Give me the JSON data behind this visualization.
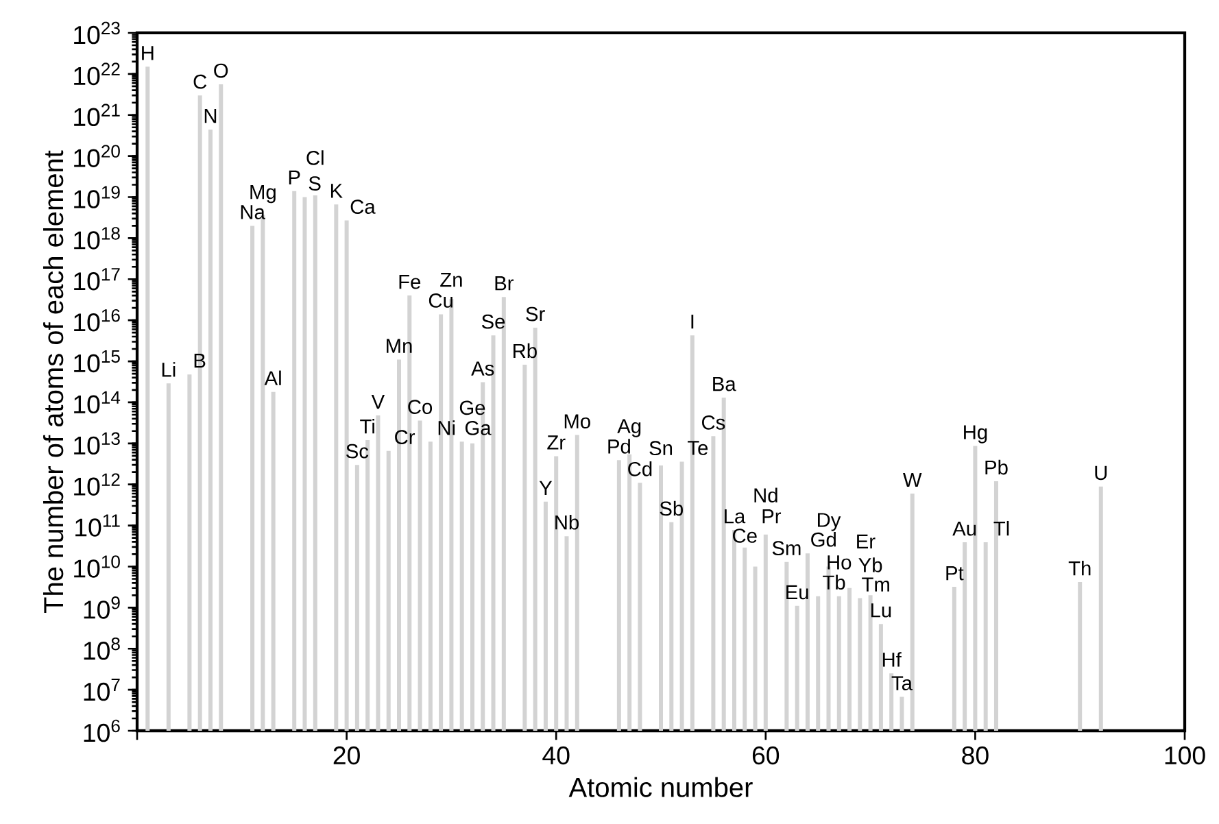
{
  "chart_data": {
    "type": "bar",
    "xlabel": "Atomic number",
    "ylabel": "The number of atoms of each element",
    "log": "y",
    "color": "#d3d3d3",
    "grid": false,
    "x": [
      1,
      3,
      5,
      6,
      7,
      8,
      11,
      12,
      13,
      15,
      16,
      17,
      19,
      20,
      21,
      22,
      23,
      24,
      25,
      26,
      27,
      28,
      29,
      30,
      31,
      32,
      33,
      34,
      35,
      37,
      38,
      39,
      40,
      41,
      42,
      46,
      47,
      48,
      50,
      51,
      52,
      53,
      55,
      56,
      57,
      58,
      59,
      60,
      62,
      63,
      64,
      65,
      66,
      67,
      68,
      69,
      70,
      71,
      72,
      73,
      74,
      78,
      79,
      80,
      81,
      82,
      90,
      92
    ],
    "values": [
      1.5e+22,
      290000000000000.0,
      480000000000000.0,
      3e+21,
      4.4e+20,
      5.6e+21,
      2e+18,
      3.7e+18,
      180000000000000.0,
      1.4e+19,
      1e+19,
      1.1e+19,
      6.6e+18,
      2.7e+18,
      3000000000000.0,
      12000000000000.0,
      48000000000000.0,
      6600000000000.0,
      1100000000000000.0,
      4e+16,
      36000000000000.0,
      11000000000000.0,
      1.4e+16,
      3.3e+16,
      11000000000000.0,
      10000000000000.0,
      310000000000000.0,
      4300000000000000.0,
      3.7e+16,
      830000000000000.0,
      6600000000000000.0,
      380000000000.0,
      4900000000000.0,
      55000000000.0,
      16000000000000.0,
      3900000000000.0,
      5400000000000.0,
      1100000000000.0,
      2900000000000.0,
      120000000000.0,
      3600000000000.0,
      4300000000000000.0,
      15000000000000.0,
      130000000000000.0,
      78000000000.0,
      29000000000.0,
      10000000000.0,
      60000000000.0,
      13000000000.0,
      1100000000.0,
      21000000000.0,
      1900000000.0,
      10000000000.0,
      1900000000.0,
      3000000000.0,
      1700000000.0,
      2000000000.0,
      400000000.0,
      25000000.0,
      6700000.0,
      600000000000.0,
      3200000000.0,
      39000000000.0,
      8700000000000.0,
      39000000000.0,
      1200000000000.0,
      4200000000.0,
      890000000000.0
    ],
    "annotations": [
      {
        "text": "H",
        "x": 1,
        "y": 1.5e+22
      },
      {
        "text": "Li",
        "x": 3,
        "y": 290000000000000.0
      },
      {
        "text": "B",
        "x": 5,
        "y": 480000000000000.0
      },
      {
        "text": "C",
        "x": 6,
        "y": 3e+21
      },
      {
        "text": "N",
        "x": 7,
        "y": 4.4e+20
      },
      {
        "text": "O",
        "x": 8,
        "y": 5.6e+21
      },
      {
        "text": "Na",
        "x": 11,
        "y": 2e+18
      },
      {
        "text": "Mg",
        "x": 12,
        "y": 3.7e+18
      },
      {
        "text": "Al",
        "x": 13,
        "y": 180000000000000.0
      },
      {
        "text": "P",
        "x": 15,
        "y": 1.4e+19
      },
      {
        "text": "S",
        "x": 16,
        "y": 1e+19
      },
      {
        "text": "Cl",
        "x": 17,
        "y": 1.1e+19
      },
      {
        "text": "K",
        "x": 19,
        "y": 6.6e+18
      },
      {
        "text": "Ca",
        "x": 20,
        "y": 2.7e+18
      },
      {
        "text": "Sc",
        "x": 21,
        "y": 3000000000000.0
      },
      {
        "text": "Ti",
        "x": 22,
        "y": 12000000000000.0
      },
      {
        "text": "V",
        "x": 23,
        "y": 48000000000000.0
      },
      {
        "text": "Cr",
        "x": 24,
        "y": 6600000000000.0
      },
      {
        "text": "Mn",
        "x": 25,
        "y": 1100000000000000.0
      },
      {
        "text": "Fe",
        "x": 26,
        "y": 4e+16
      },
      {
        "text": "Co",
        "x": 27,
        "y": 36000000000000.0
      },
      {
        "text": "Ni",
        "x": 28,
        "y": 11000000000000.0
      },
      {
        "text": "Cu",
        "x": 29,
        "y": 1.4e+16
      },
      {
        "text": "Zn",
        "x": 30,
        "y": 3.3e+16
      },
      {
        "text": "Ga",
        "x": 31,
        "y": 11000000000000.0
      },
      {
        "text": "Ge",
        "x": 32,
        "y": 10000000000000.0
      },
      {
        "text": "As",
        "x": 33,
        "y": 310000000000000.0
      },
      {
        "text": "Se",
        "x": 34,
        "y": 4300000000000000.0
      },
      {
        "text": "Br",
        "x": 35,
        "y": 3.7e+16
      },
      {
        "text": "Rb",
        "x": 37,
        "y": 830000000000000.0
      },
      {
        "text": "Sr",
        "x": 38,
        "y": 6600000000000000.0
      },
      {
        "text": "Y",
        "x": 39,
        "y": 380000000000.0
      },
      {
        "text": "Zr",
        "x": 40,
        "y": 4900000000000.0
      },
      {
        "text": "Nb",
        "x": 41,
        "y": 55000000000.0
      },
      {
        "text": "Mo",
        "x": 42,
        "y": 16000000000000.0
      },
      {
        "text": "Pd",
        "x": 46,
        "y": 3900000000000.0
      },
      {
        "text": "Ag",
        "x": 47,
        "y": 5400000000000.0
      },
      {
        "text": "Cd",
        "x": 48,
        "y": 1100000000000.0
      },
      {
        "text": "Sn",
        "x": 50,
        "y": 2900000000000.0
      },
      {
        "text": "Sb",
        "x": 51,
        "y": 120000000000.0
      },
      {
        "text": "Te",
        "x": 52,
        "y": 3600000000000.0
      },
      {
        "text": "I",
        "x": 53,
        "y": 4300000000000000.0
      },
      {
        "text": "Cs",
        "x": 55,
        "y": 15000000000000.0
      },
      {
        "text": "Ba",
        "x": 56,
        "y": 130000000000000.0
      },
      {
        "text": "La",
        "x": 57,
        "y": 78000000000.0
      },
      {
        "text": "Ce",
        "x": 58,
        "y": 29000000000.0
      },
      {
        "text": "Pr",
        "x": 59,
        "y": 10000000000.0
      },
      {
        "text": "Nd",
        "x": 60,
        "y": 60000000000.0
      },
      {
        "text": "Sm",
        "x": 62,
        "y": 13000000000.0
      },
      {
        "text": "Eu",
        "x": 63,
        "y": 1100000000.0
      },
      {
        "text": "Gd",
        "x": 64,
        "y": 21000000000.0
      },
      {
        "text": "Tb",
        "x": 65,
        "y": 1900000000.0
      },
      {
        "text": "Dy",
        "x": 66,
        "y": 10000000000.0
      },
      {
        "text": "Ho",
        "x": 67,
        "y": 1900000000.0
      },
      {
        "text": "Er",
        "x": 68,
        "y": 3000000000.0
      },
      {
        "text": "Tm",
        "x": 69,
        "y": 1700000000.0
      },
      {
        "text": "Yb",
        "x": 70,
        "y": 2000000000.0
      },
      {
        "text": "Lu",
        "x": 71,
        "y": 400000000.0
      },
      {
        "text": "Hf",
        "x": 72,
        "y": 25000000.0
      },
      {
        "text": "Ta",
        "x": 73,
        "y": 6700000.0
      },
      {
        "text": "W",
        "x": 74,
        "y": 600000000000.0
      },
      {
        "text": "Pt",
        "x": 78,
        "y": 3200000000.0
      },
      {
        "text": "Au",
        "x": 79,
        "y": 39000000000.0
      },
      {
        "text": "Hg",
        "x": 80,
        "y": 8700000000000.0
      },
      {
        "text": "Tl",
        "x": 81,
        "y": 39000000000.0
      },
      {
        "text": "Pb",
        "x": 82,
        "y": 1200000000000.0
      },
      {
        "text": "Th",
        "x": 90,
        "y": 4200000000.0
      },
      {
        "text": "U",
        "x": 92,
        "y": 890000000000.0
      }
    ],
    "xlim": [
      0,
      100
    ],
    "xticks": [
      {
        "value": 0,
        "label": null
      },
      20,
      40,
      60,
      80,
      100
    ],
    "ylim": [
      1000000.0,
      1e+23
    ],
    "yticks": [
      {
        "value": 1000000.0,
        "label": "10$^{6}$"
      },
      {
        "value": 10000000.0,
        "label": "10$^{7}$"
      },
      {
        "value": 100000000.0,
        "label": "10$^{8}$"
      },
      {
        "value": 1000000000.0,
        "label": "10$^{9}$"
      },
      {
        "value": 10000000000.0,
        "label": "10$^{10}$"
      },
      {
        "value": 100000000000.0,
        "label": "10$^{11}$"
      },
      {
        "value": 1000000000000.0,
        "label": "10$^{12}$"
      },
      {
        "value": 10000000000000.0,
        "label": "10$^{13}$"
      },
      {
        "value": 100000000000000.0,
        "label": "10$^{14}$"
      },
      {
        "value": 1000000000000000.0,
        "label": "10$^{15}$"
      },
      {
        "value": 1e+16,
        "label": "10$^{16}$"
      },
      {
        "value": 1e+17,
        "label": "10$^{17}$"
      },
      {
        "value": 1e+18,
        "label": "10$^{18}$"
      },
      {
        "value": 1e+19,
        "label": "10$^{19}$"
      },
      {
        "value": 1e+20,
        "label": "10$^{20}$"
      },
      {
        "value": 1e+21,
        "label": "10$^{21}$"
      },
      {
        "value": 1e+22,
        "label": "10$^{22}$"
      },
      {
        "value": 1e+23,
        "label": "10$^{23}$"
      }
    ]
  }
}
